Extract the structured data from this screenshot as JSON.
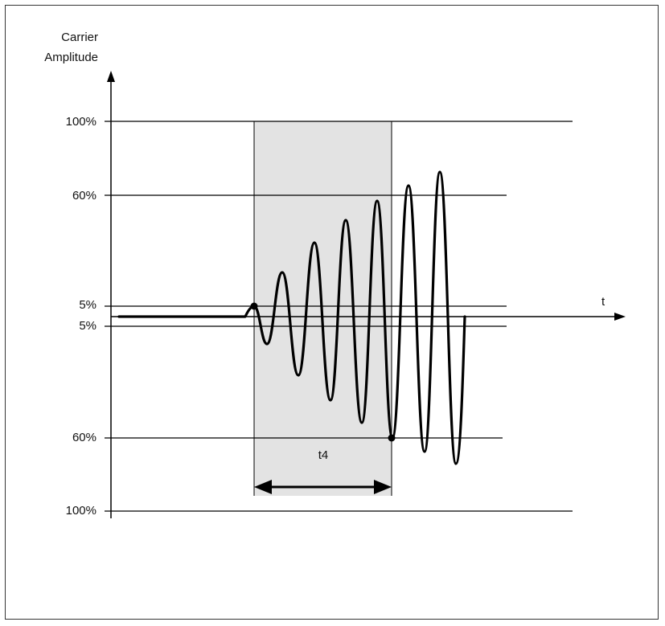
{
  "axis": {
    "y_title_line1": "Carrier",
    "y_title_line2": "Amplitude",
    "x_label": "t"
  },
  "levels": {
    "top_100": "100%",
    "top_60": "60%",
    "top_5": "5%",
    "bottom_5": "5%",
    "bottom_60": "60%",
    "bottom_100": "100%"
  },
  "interval": {
    "label": "t4"
  },
  "colors": {
    "shade": "#e3e3e3",
    "line": "#000000"
  }
}
